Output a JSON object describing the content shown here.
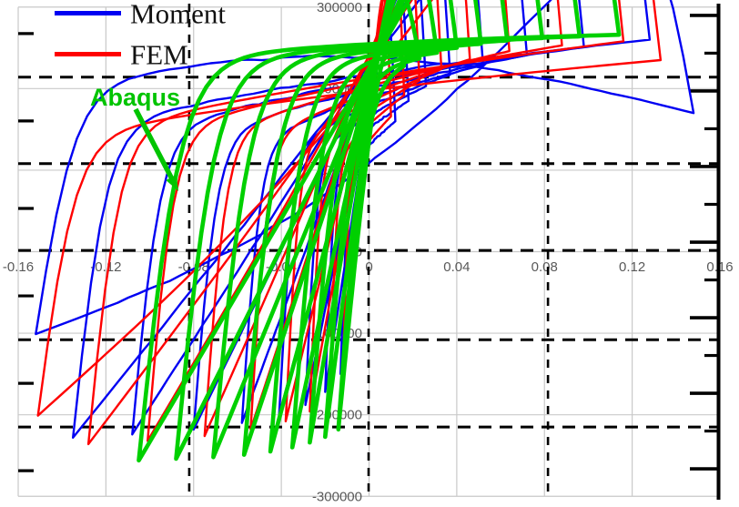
{
  "chart_data": {
    "type": "line",
    "subtype": "hysteresis-loops",
    "title": "",
    "xlabel": "",
    "ylabel": "",
    "xlim": [
      -0.16,
      0.16
    ],
    "ylim": [
      -300000,
      300000
    ],
    "x_ticks": [
      -0.16,
      -0.12,
      -0.08,
      -0.04,
      0,
      0.04,
      0.08,
      0.12,
      0.16
    ],
    "x_tick_labels": [
      "-0.16",
      "-0.12",
      "-0.08",
      "-0.04",
      "0",
      "0.04",
      "0.08",
      "0.12",
      "0.16"
    ],
    "y_ticks": [
      300000,
      200000,
      100000,
      0,
      -100000,
      -200000,
      -300000
    ],
    "y_tick_labels": [
      "300000",
      "200000",
      "100000",
      "0",
      "-100000",
      "-200000",
      "-300000"
    ],
    "grid": "on",
    "grid_color": "#c9c9c9",
    "tick_label_color": "#595959",
    "secondary_grid": {
      "comment_style": "black dashed overlay gridlines",
      "x_values": [
        -0.082,
        -0.0002,
        0.0816
      ],
      "y_values": [
        214000,
        108000,
        1500,
        -108000,
        -215000
      ],
      "left_tick_moments": [
        267500,
        160300,
        53000,
        -54200,
        -161400,
        -268600
      ],
      "right_axis_major_moments": [
        289800,
        197100,
        104400,
        11700,
        -81000,
        -173600,
        -266300
      ],
      "right_axis_minor_moments": [
        243450,
        150750,
        58050,
        -34650,
        -127300,
        -219950
      ]
    },
    "legend_position": "top-left",
    "series": [
      {
        "name": "Moment",
        "color": "#0000f2",
        "line_width": 2.4,
        "style": {
          "tf": 0.78,
          "bf": 0.88,
          "ts": 10000,
          "bs": 15000,
          "jitter": 1700,
          "ld": 2.2
        },
        "last_cycle_override": {
          "tf": 1.1,
          "ts": 55000,
          "bf": 1.22,
          "bs": 95000
        },
        "cycles": [
          [
            0.013,
            150000,
            0.012,
            160000,
            0.007
          ],
          [
            0.02,
            172000,
            0.018,
            185000,
            0.009
          ],
          [
            0.029,
            188000,
            0.026,
            203000,
            0.012
          ],
          [
            0.041,
            200000,
            0.037,
            217000,
            0.015
          ],
          [
            0.058,
            210000,
            0.052,
            229000,
            0.019
          ],
          [
            0.08,
            218000,
            0.072,
            241000,
            0.024
          ],
          [
            0.108,
            224000,
            0.098,
            251000,
            0.029
          ],
          [
            0.135,
            228000,
            0.128,
            260000,
            0.034
          ],
          [
            0.152,
            101000,
            0.148,
            170000,
            0.04
          ]
        ]
      },
      {
        "name": "FEM",
        "color": "#ff0000",
        "line_width": 2.4,
        "style": {
          "tf": 0.78,
          "bf": 0.9,
          "ts": 8000,
          "bs": 28000,
          "jitter": 0,
          "ld": 2.2
        },
        "last_cycle_override": {
          "bf": 1.08,
          "bs": 70000
        },
        "cycles": [
          [
            0.012,
            158000,
            0.01,
            166000,
            0.006
          ],
          [
            0.018,
            180000,
            0.016,
            192000,
            0.008
          ],
          [
            0.027,
            196000,
            0.023,
            210000,
            0.011
          ],
          [
            0.038,
            208000,
            0.033,
            224000,
            0.014
          ],
          [
            0.054,
            218000,
            0.046,
            236000,
            0.018
          ],
          [
            0.075,
            226000,
            0.064,
            246000,
            0.022
          ],
          [
            0.101,
            232000,
            0.088,
            253000,
            0.027
          ],
          [
            0.128,
            236000,
            0.116,
            258000,
            0.032
          ],
          [
            0.151,
            201000,
            0.133,
            235000,
            0.038
          ]
        ]
      },
      {
        "name": "Abaqus",
        "color": "#00d000",
        "line_width": 4.6,
        "style": {
          "tf": 0.94,
          "bf": 0.94,
          "ts": 6000,
          "bs": 6000,
          "jitter": 0,
          "ld": 1.55
        },
        "cycles": [
          [
            0.014,
            218000,
            0.016,
            228000,
            0.018
          ],
          [
            0.02,
            227000,
            0.023,
            237000,
            0.019
          ],
          [
            0.027,
            234000,
            0.031,
            244000,
            0.02
          ],
          [
            0.035,
            240000,
            0.04,
            250000,
            0.021
          ],
          [
            0.045,
            245000,
            0.051,
            255000,
            0.0225
          ],
          [
            0.057,
            249000,
            0.063,
            259000,
            0.024
          ],
          [
            0.071,
            252000,
            0.079,
            262000,
            0.026
          ],
          [
            0.088,
            254000,
            0.096,
            264000,
            0.028
          ],
          [
            0.105,
            256000,
            0.114,
            266000,
            0.03
          ]
        ]
      }
    ]
  },
  "legend": {
    "items": [
      {
        "label": "Moment",
        "color": "#0000f2"
      },
      {
        "label": "FEM",
        "color": "#ff0000"
      }
    ]
  },
  "annotation": {
    "label": "Abaqus",
    "color": "#00c400",
    "arrow_from": [
      149,
      120
    ],
    "arrow_to": [
      196,
      210
    ]
  }
}
